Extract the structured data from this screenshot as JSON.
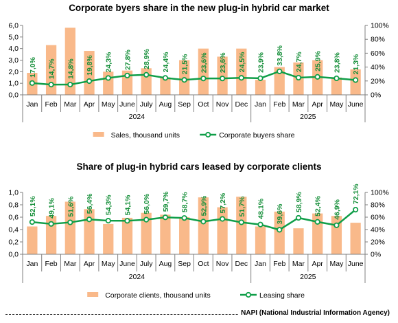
{
  "footer": "NAPI (National Industrial Information Agency)",
  "colors": {
    "bar": "#F9B98A",
    "line": "#0F9E48",
    "label": "#168F3A",
    "axis": "#7f7f7f"
  },
  "chart_data": [
    {
      "type": "bar+line",
      "title": "Corporate byers share in the new plug-in hybrid car market",
      "categories": [
        "Jan",
        "Feb",
        "Mar",
        "Apr",
        "May",
        "June",
        "July",
        "Aug",
        "Sep",
        "Oct",
        "Nov",
        "Dec",
        "Jan",
        "Feb",
        "Mar",
        "Apr",
        "May",
        "June"
      ],
      "years": [
        {
          "label": "2024",
          "span": 12
        },
        {
          "label": "2025",
          "span": 6
        }
      ],
      "series": [
        {
          "name": "Sales, thousand units",
          "kind": "bar",
          "axis": "left",
          "values": [
            1.9,
            4.3,
            5.8,
            3.8,
            2.0,
            2.1,
            2.3,
            1.5,
            3.0,
            4.0,
            3.3,
            4.0,
            1.3,
            2.4,
            2.8,
            3.0,
            1.5,
            2.2
          ]
        },
        {
          "name": "Corporate buyers share",
          "kind": "line",
          "axis": "right",
          "values": [
            17.0,
            14.7,
            14.8,
            19.8,
            24.3,
            27.8,
            28.9,
            24.4,
            21.5,
            23.6,
            23.6,
            24.5,
            23.9,
            33.8,
            24.7,
            25.9,
            23.8,
            21.3
          ],
          "labels": [
            "17,0%",
            "14,7%",
            "14,8%",
            "19,8%",
            "24,3%",
            "27,8%",
            "28,9%",
            "24,4%",
            "21,5%",
            "23,6%",
            "23,6%",
            "24,5%",
            "23,9%",
            "33,8%",
            "24,7%",
            "25,9%",
            "23,8%",
            "21,3%"
          ]
        }
      ],
      "left_axis": {
        "min": 0,
        "max": 6,
        "ticks": [
          "0,0",
          "1,0",
          "2,0",
          "3,0",
          "4,0",
          "5,0",
          "6,0"
        ]
      },
      "right_axis": {
        "min": 0,
        "max": 100,
        "ticks": [
          "0%",
          "20%",
          "40%",
          "60%",
          "80%",
          "100%"
        ]
      },
      "legend": [
        "Sales, thousand units",
        "Corporate buyers share"
      ],
      "legend_position": "bottom"
    },
    {
      "type": "bar+line",
      "title": "Share of plug-in hybrid cars leased by corporate clients",
      "categories": [
        "Jan",
        "Feb",
        "Mar",
        "Apr",
        "May",
        "June",
        "July",
        "Aug",
        "Sep",
        "Oct",
        "Nov",
        "Dec",
        "Jan",
        "Feb",
        "Mar",
        "Apr",
        "May",
        "June"
      ],
      "years": [
        {
          "label": "2024",
          "span": 12
        },
        {
          "label": "2025",
          "span": 6
        }
      ],
      "series": [
        {
          "name": "Corporate clients, thousand units",
          "kind": "bar",
          "axis": "left",
          "values": [
            0.45,
            0.62,
            0.85,
            0.73,
            0.49,
            0.59,
            0.67,
            0.64,
            0.6,
            0.92,
            0.76,
            0.93,
            0.45,
            0.69,
            0.42,
            0.66,
            0.62,
            0.51
          ]
        },
        {
          "name": "Leasing share",
          "kind": "line",
          "axis": "right",
          "values": [
            52.1,
            49.1,
            51.6,
            56.4,
            54.3,
            54.1,
            56.0,
            59.7,
            58.7,
            52.9,
            57.2,
            51.7,
            48.1,
            39.6,
            58.9,
            52.4,
            46.9,
            72.1
          ],
          "labels": [
            "52,1%",
            "49,1%",
            "51,6%",
            "56,4%",
            "54,3%",
            "54,1%",
            "56,0%",
            "59,7%",
            "58,7%",
            "52,9%",
            "57,2%",
            "51,7%",
            "48,1%",
            "39,6%",
            "58,9%",
            "52,4%",
            "46,9%",
            "72,1%"
          ]
        }
      ],
      "left_axis": {
        "min": 0,
        "max": 1,
        "ticks": [
          "0,0",
          "0,2",
          "0,4",
          "0,6",
          "0,8",
          "1,0"
        ]
      },
      "right_axis": {
        "min": 0,
        "max": 100,
        "ticks": [
          "0%",
          "20%",
          "40%",
          "60%",
          "80%",
          "100%"
        ]
      },
      "legend": [
        "Corporate clients, thousand units",
        "Leasing share"
      ],
      "legend_position": "bottom"
    }
  ]
}
